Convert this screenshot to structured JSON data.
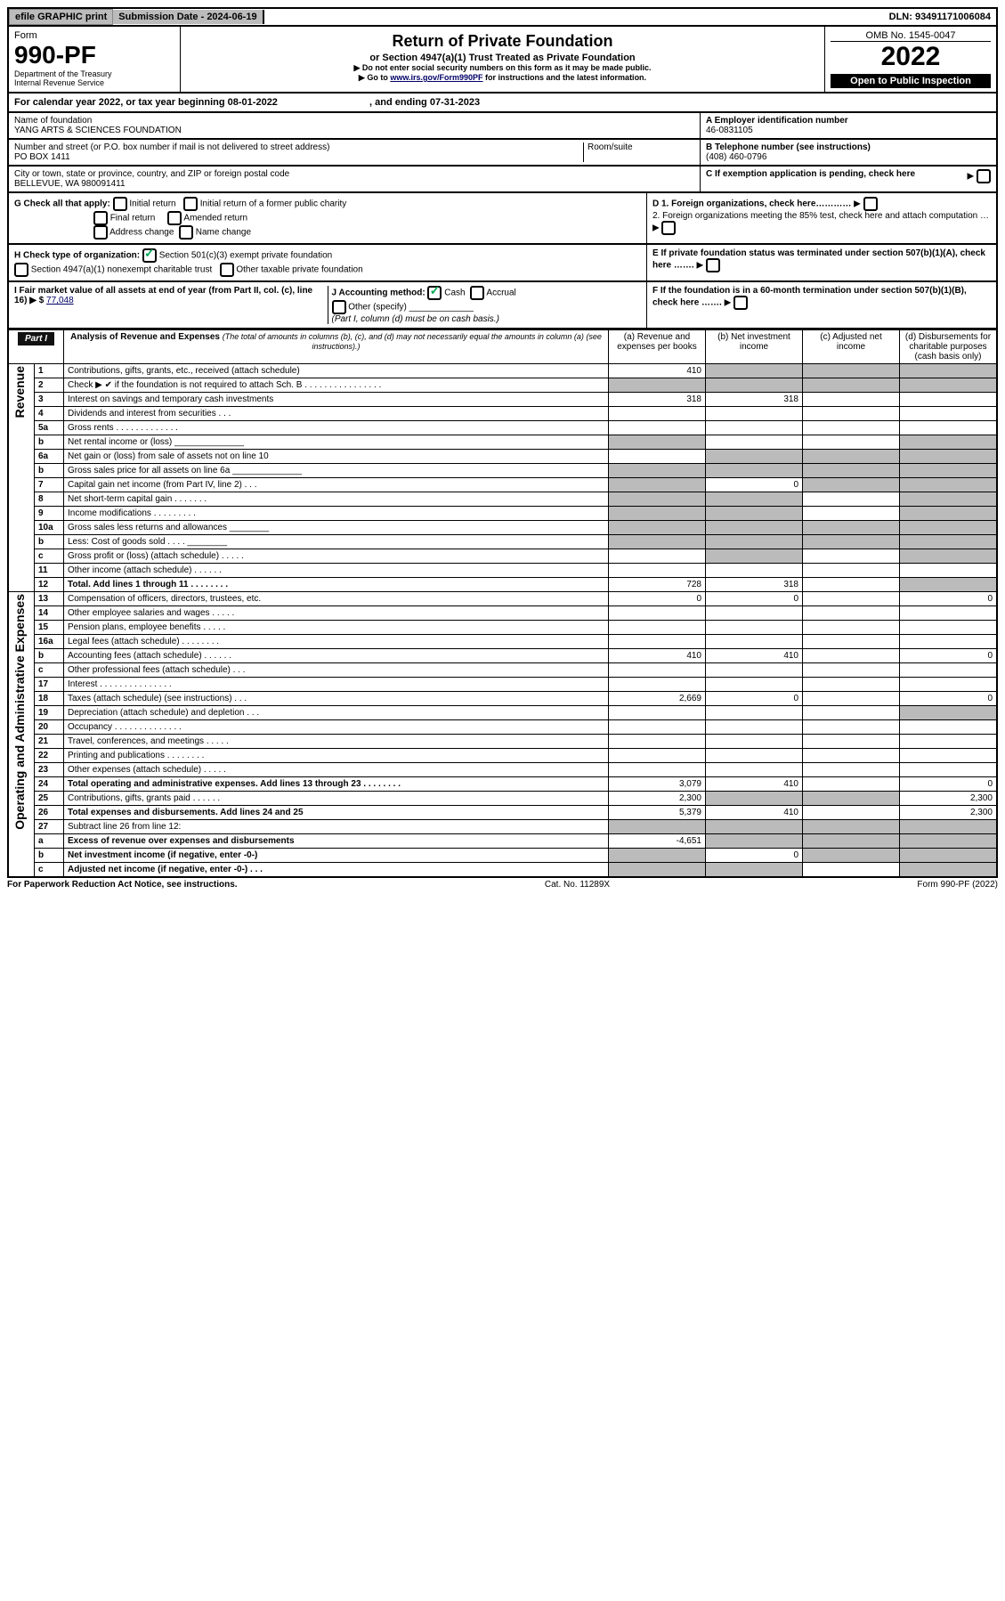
{
  "topbar": {
    "efile": "efile GRAPHIC print",
    "submission": "Submission Date - 2024-06-19",
    "dln": "DLN: 93491171006084"
  },
  "header": {
    "form_label": "Form",
    "form_number": "990-PF",
    "dept": "Department of the Treasury",
    "irs": "Internal Revenue Service",
    "title": "Return of Private Foundation",
    "subtitle": "or Section 4947(a)(1) Trust Treated as Private Foundation",
    "note1": "▶ Do not enter social security numbers on this form as it may be made public.",
    "note2_pre": "▶ Go to ",
    "note2_link": "www.irs.gov/Form990PF",
    "note2_post": " for instructions and the latest information.",
    "omb": "OMB No. 1545-0047",
    "year": "2022",
    "open": "Open to Public Inspection"
  },
  "yearline": {
    "pre": "For calendar year 2022, or tax year beginning ",
    "begin": "08-01-2022",
    "mid": ", and ending ",
    "end": "07-31-2023"
  },
  "info": {
    "name_label": "Name of foundation",
    "name": "YANG ARTS & SCIENCES FOUNDATION",
    "addr_label": "Number and street (or P.O. box number if mail is not delivered to street address)",
    "addr": "PO BOX 1411",
    "room_label": "Room/suite",
    "city_label": "City or town, state or province, country, and ZIP or foreign postal code",
    "city": "BELLEVUE, WA  980091411",
    "ein_label": "A Employer identification number",
    "ein": "46-0831105",
    "phone_label": "B Telephone number (see instructions)",
    "phone": "(408) 460-0796",
    "pending": "C If exemption application is pending, check here"
  },
  "checks": {
    "g_label": "G Check all that apply:",
    "g1": "Initial return",
    "g2": "Final return",
    "g3": "Address change",
    "g4": "Initial return of a former public charity",
    "g5": "Amended return",
    "g6": "Name change",
    "h_label": "H Check type of organization:",
    "h1": "Section 501(c)(3) exempt private foundation",
    "h2": "Section 4947(a)(1) nonexempt charitable trust",
    "h3": "Other taxable private foundation",
    "i_label": "I Fair market value of all assets at end of year (from Part II, col. (c), line 16) ▶ $",
    "i_value": "77,048",
    "j_label": "J Accounting method:",
    "j1": "Cash",
    "j2": "Accrual",
    "j3": "Other (specify)",
    "j_note": "(Part I, column (d) must be on cash basis.)",
    "d1": "D 1. Foreign organizations, check here…………",
    "d2": "2. Foreign organizations meeting the 85% test, check here and attach computation …",
    "e": "E If private foundation status was terminated under section 507(b)(1)(A), check here …….",
    "f": "F If the foundation is in a 60-month termination under section 507(b)(1)(B), check here ……."
  },
  "part1": {
    "label": "Part I",
    "title": "Analysis of Revenue and Expenses",
    "title_note": "(The total of amounts in columns (b), (c), and (d) may not necessarily equal the amounts in column (a) (see instructions).)",
    "cols": {
      "a": "(a) Revenue and expenses per books",
      "b": "(b) Net investment income",
      "c": "(c) Adjusted net income",
      "d": "(d) Disbursements for charitable purposes (cash basis only)"
    },
    "rev_label": "Revenue",
    "exp_label": "Operating and Administrative Expenses",
    "rows": [
      {
        "n": "1",
        "t": "Contributions, gifts, grants, etc., received (attach schedule)",
        "a": "410",
        "shade_bcd": true
      },
      {
        "n": "2",
        "t": "Check ▶ ✔ if the foundation is not required to attach Sch. B   . . . . . . . . . . . . . . . .",
        "a": "",
        "bc": "",
        "shade_all": true,
        "bold": false
      },
      {
        "n": "3",
        "t": "Interest on savings and temporary cash investments",
        "a": "318",
        "b": "318"
      },
      {
        "n": "4",
        "t": "Dividends and interest from securities   . . .",
        "a": ""
      },
      {
        "n": "5a",
        "t": "Gross rents   . . . . . . . . . . . . .",
        "a": ""
      },
      {
        "n": "b",
        "t": "Net rental income or (loss) ______________",
        "shade_ad": true
      },
      {
        "n": "6a",
        "t": "Net gain or (loss) from sale of assets not on line 10",
        "shade_bcd": true
      },
      {
        "n": "b",
        "t": "Gross sales price for all assets on line 6a ______________",
        "shade_all": true
      },
      {
        "n": "7",
        "t": "Capital gain net income (from Part IV, line 2)   . . .",
        "shade_acd": true,
        "b": "0"
      },
      {
        "n": "8",
        "t": "Net short-term capital gain   . . . . . . .",
        "shade_abd": true
      },
      {
        "n": "9",
        "t": "Income modifications   . . . . . . . . .",
        "shade_abd": true
      },
      {
        "n": "10a",
        "t": "Gross sales less returns and allowances ________",
        "shade_all": true
      },
      {
        "n": "b",
        "t": "Less: Cost of goods sold   . . . . ________",
        "shade_all": true
      },
      {
        "n": "c",
        "t": "Gross profit or (loss) (attach schedule)   . . . . .",
        "shade_bd": true
      },
      {
        "n": "11",
        "t": "Other income (attach schedule)   . . . . . .",
        "a": ""
      },
      {
        "n": "12",
        "t": "Total. Add lines 1 through 11   . . . . . . . .",
        "bold": true,
        "a": "728",
        "b": "318",
        "shade_d": true
      }
    ],
    "exprows": [
      {
        "n": "13",
        "t": "Compensation of officers, directors, trustees, etc.",
        "a": "0",
        "b": "0",
        "d": "0"
      },
      {
        "n": "14",
        "t": "Other employee salaries and wages   . . . . ."
      },
      {
        "n": "15",
        "t": "Pension plans, employee benefits   . . . . ."
      },
      {
        "n": "16a",
        "t": "Legal fees (attach schedule)   . . . . . . . ."
      },
      {
        "n": "b",
        "t": "Accounting fees (attach schedule)   . . . . . .",
        "a": "410",
        "b": "410",
        "d": "0"
      },
      {
        "n": "c",
        "t": "Other professional fees (attach schedule)   . . ."
      },
      {
        "n": "17",
        "t": "Interest   . . . . . . . . . . . . . . ."
      },
      {
        "n": "18",
        "t": "Taxes (attach schedule) (see instructions)   . . .",
        "a": "2,669",
        "b": "0",
        "d": "0"
      },
      {
        "n": "19",
        "t": "Depreciation (attach schedule) and depletion   . . .",
        "shade_d": true
      },
      {
        "n": "20",
        "t": "Occupancy   . . . . . . . . . . . . . ."
      },
      {
        "n": "21",
        "t": "Travel, conferences, and meetings   . . . . ."
      },
      {
        "n": "22",
        "t": "Printing and publications   . . . . . . . ."
      },
      {
        "n": "23",
        "t": "Other expenses (attach schedule)   . . . . ."
      },
      {
        "n": "24",
        "t": "Total operating and administrative expenses. Add lines 13 through 23   . . . . . . . .",
        "bold": true,
        "a": "3,079",
        "b": "410",
        "d": "0"
      },
      {
        "n": "25",
        "t": "Contributions, gifts, grants paid   . . . . . .",
        "a": "2,300",
        "d": "2,300",
        "shade_bc": true
      },
      {
        "n": "26",
        "t": "Total expenses and disbursements. Add lines 24 and 25",
        "bold": true,
        "a": "5,379",
        "b": "410",
        "d": "2,300"
      },
      {
        "n": "27",
        "t": "Subtract line 26 from line 12:",
        "shade_all": true
      },
      {
        "n": "a",
        "t": "Excess of revenue over expenses and disbursements",
        "bold": true,
        "a": "-4,651",
        "shade_bcd": true
      },
      {
        "n": "b",
        "t": "Net investment income (if negative, enter -0-)",
        "bold": true,
        "b": "0",
        "shade_acd": true
      },
      {
        "n": "c",
        "t": "Adjusted net income (if negative, enter -0-)   . . .",
        "bold": true,
        "shade_abd": true
      }
    ]
  },
  "footer": {
    "left": "For Paperwork Reduction Act Notice, see instructions.",
    "mid": "Cat. No. 11289X",
    "right": "Form 990-PF (2022)"
  }
}
